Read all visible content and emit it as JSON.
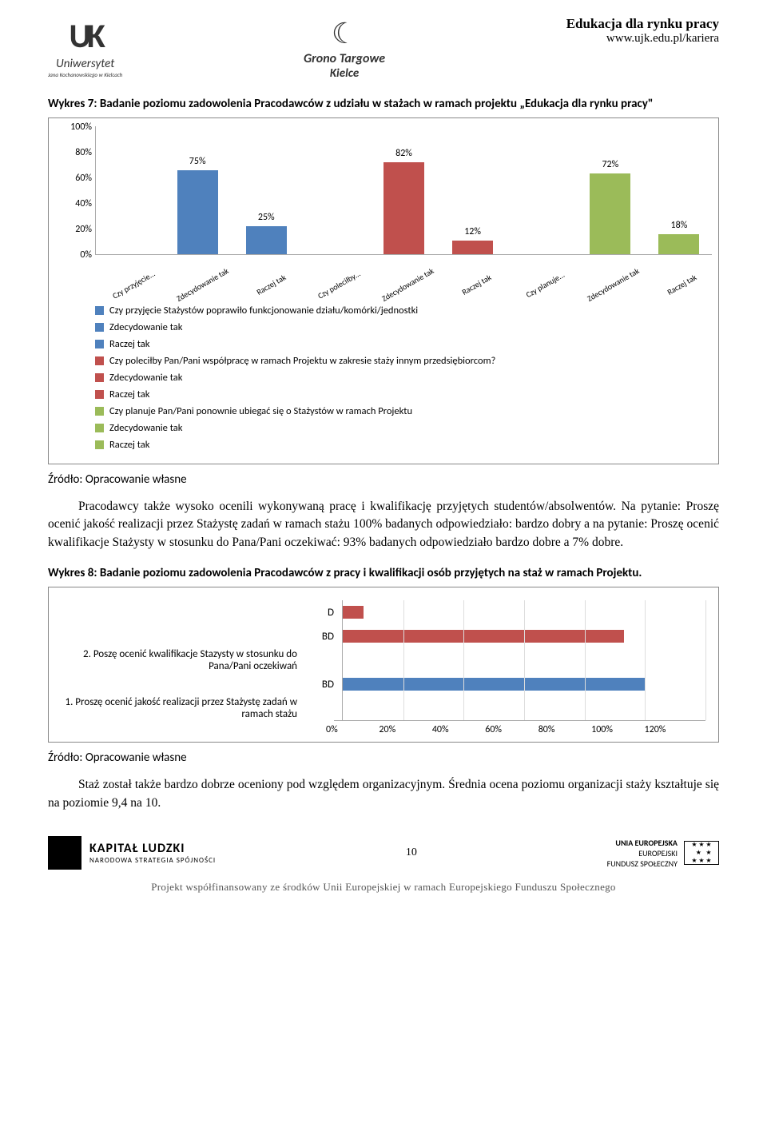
{
  "header": {
    "left": {
      "mark": "UK",
      "line1": "Uniwersytet",
      "line2": "Jana Kochanowskiego w Kielcach"
    },
    "center": {
      "line1": "Grono Targowe",
      "line2": "Kielce"
    },
    "right": {
      "title": "Edukacja dla rynku pracy",
      "url": "www.ujk.edu.pl/kariera"
    }
  },
  "chart1": {
    "caption": "Wykres 7: Badanie poziomu zadowolenia Pracodawców z udziału w stażach w ramach projektu „Edukacja dla rynku pracy\"",
    "yticks": [
      "100%",
      "80%",
      "60%",
      "40%",
      "20%",
      "0%"
    ],
    "ymax": 100,
    "bars": [
      {
        "x": "Czy przyjęcie...",
        "label": "",
        "value": 0,
        "color": "#4f81bd"
      },
      {
        "x": "Zdecydowanie tak",
        "label": "75%",
        "value": 75,
        "color": "#4f81bd"
      },
      {
        "x": "Raczej tak",
        "label": "25%",
        "value": 25,
        "color": "#4f81bd"
      },
      {
        "x": "Czy poleciłby...",
        "label": "",
        "value": 0,
        "color": "#c0504d"
      },
      {
        "x": "Zdecydowanie tak",
        "label": "82%",
        "value": 82,
        "color": "#c0504d"
      },
      {
        "x": "Raczej tak",
        "label": "12%",
        "value": 12,
        "color": "#c0504d"
      },
      {
        "x": "Czy planuje...",
        "label": "",
        "value": 0,
        "color": "#9bbb59"
      },
      {
        "x": "Zdecydowanie tak",
        "label": "72%",
        "value": 72,
        "color": "#9bbb59"
      },
      {
        "x": "Raczej tak",
        "label": "18%",
        "value": 18,
        "color": "#9bbb59"
      }
    ],
    "legend": [
      {
        "c": "#4f81bd",
        "t": "Czy przyjęcie Stażystów poprawiło funkcjonowanie działu/komórki/jednostki"
      },
      {
        "c": "#4f81bd",
        "t": "Zdecydowanie tak"
      },
      {
        "c": "#4f81bd",
        "t": "Raczej tak"
      },
      {
        "c": "#c0504d",
        "t": "Czy poleciłby Pan/Pani współpracę w ramach Projektu w zakresie staży innym przedsiębiorcom?"
      },
      {
        "c": "#c0504d",
        "t": "Zdecydowanie tak"
      },
      {
        "c": "#c0504d",
        "t": "Raczej tak"
      },
      {
        "c": "#9bbb59",
        "t": "Czy planuje Pan/Pani ponownie ubiegać się o Stażystów w ramach Projektu"
      },
      {
        "c": "#9bbb59",
        "t": "Zdecydowanie tak"
      },
      {
        "c": "#9bbb59",
        "t": "Raczej tak"
      }
    ]
  },
  "source": "Źródło: Opracowanie własne",
  "para1": "Pracodawcy także wysoko ocenili wykonywaną pracę i kwalifikację przyjętych studentów/absolwentów. Na pytanie: Proszę ocenić jakość realizacji przez Stażystę zadań w ramach stażu 100% badanych odpowiedziało: bardzo dobry a na pytanie: Proszę ocenić kwalifikacje Stażysty w stosunku do Pana/Pani oczekiwać: 93% badanych odpowiedziało bardzo dobre a 7% dobre.",
  "chart2": {
    "caption": "Wykres 8: Badanie poziomu zadowolenia Pracodawców z pracy i kwalifikacji osób przyjętych na staż w ramach Projektu.",
    "xmax": 120,
    "xticks": [
      "0%",
      "20%",
      "40%",
      "60%",
      "80%",
      "100%",
      "120%"
    ],
    "rows": [
      {
        "left": "",
        "cat": "D",
        "value": 7,
        "color": "#c0504d"
      },
      {
        "left": "",
        "cat": "BD",
        "value": 93,
        "color": "#c0504d"
      },
      {
        "left": "2. Poszę ocenić kwalifikacje Stazysty w stosunku do Pana/Pani oczekiwań",
        "cat": "",
        "value": 0,
        "color": "#c0504d"
      },
      {
        "left": "",
        "cat": "BD",
        "value": 100,
        "color": "#4f81bd"
      },
      {
        "left": "1. Proszę ocenić jakość realizacji przez Stażystę zadań w ramach stażu",
        "cat": "",
        "value": 0,
        "color": "#4f81bd"
      }
    ]
  },
  "para2": "Staż został także bardzo dobrze oceniony pod względem organizacyjnym. Średnia ocena poziomu organizacji staży kształtuje się na poziomie 9,4 na 10.",
  "footer": {
    "left": {
      "t": "KAPITAŁ LUDZKI",
      "s": "NARODOWA STRATEGIA SPÓJNOŚCI"
    },
    "page": "10",
    "right": {
      "l1": "UNIA EUROPEJSKA",
      "l2": "EUROPEJSKI",
      "l3": "FUNDUSZ SPOŁECZNY"
    },
    "line": "Projekt współfinansowany ze środków Unii Europejskiej w ramach Europejskiego Funduszu Społecznego"
  }
}
